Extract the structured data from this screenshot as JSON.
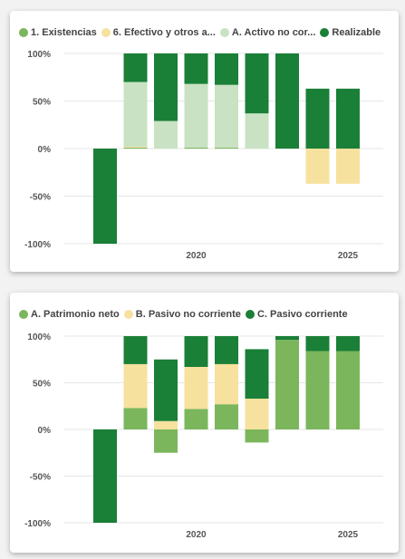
{
  "colors": {
    "realizable": "#1a7f37",
    "activo_no_corriente": "#c9e2c3",
    "efectivo": "#f7e19e",
    "existencias": "#7bb65c",
    "patrimonio_neto": "#7bb65c",
    "pasivo_no_corriente": "#f7e19e",
    "pasivo_corriente": "#1a7f37"
  },
  "chart_data": [
    {
      "type": "bar",
      "stacked": true,
      "legend_position": "top-left",
      "legend": [
        {
          "label": "1. Existencias",
          "color": "#7bb65c"
        },
        {
          "label": "6. Efectivo y otros a...",
          "color": "#f7e19e"
        },
        {
          "label": "A. Activo no cor...",
          "color": "#c9e2c3"
        },
        {
          "label": "Realizable",
          "color": "#1a7f37"
        }
      ],
      "yticks": [
        "100%",
        "50%",
        "0%",
        "-50%",
        "-100%"
      ],
      "xticks": [
        "2020",
        "2025"
      ],
      "ylim": [
        -100,
        100
      ],
      "x": [
        2017,
        2018,
        2019,
        2020,
        2021,
        2022,
        2023,
        2024,
        2025
      ],
      "series": [
        {
          "name": "1. Existencias",
          "color": "#7bb65c",
          "values": [
            0,
            1,
            0,
            1,
            1,
            0,
            0,
            0,
            0
          ]
        },
        {
          "name": "6. Efectivo y otros a...",
          "color": "#f7e19e",
          "values": [
            0,
            1,
            0,
            0,
            0,
            0,
            0,
            -37,
            -37
          ]
        },
        {
          "name": "A. Activo no cor...",
          "color": "#c9e2c3",
          "values": [
            0,
            68,
            29,
            67,
            66,
            37,
            0,
            0,
            0
          ]
        },
        {
          "name": "Realizable",
          "color": "#1a7f37",
          "values": [
            -100,
            30,
            71,
            32,
            33,
            63,
            100,
            63,
            63
          ]
        }
      ]
    },
    {
      "type": "bar",
      "stacked": true,
      "legend_position": "top-left",
      "legend": [
        {
          "label": "A. Patrimonio neto",
          "color": "#7bb65c"
        },
        {
          "label": "B. Pasivo no corriente",
          "color": "#f7e19e"
        },
        {
          "label": "C. Pasivo corriente",
          "color": "#1a7f37"
        }
      ],
      "yticks": [
        "100%",
        "50%",
        "0%",
        "-50%",
        "-100%"
      ],
      "xticks": [
        "2020",
        "2025"
      ],
      "ylim": [
        -100,
        100
      ],
      "x": [
        2017,
        2018,
        2019,
        2020,
        2021,
        2022,
        2023,
        2024,
        2025
      ],
      "series": [
        {
          "name": "A. Patrimonio neto",
          "color": "#7bb65c",
          "values": [
            0,
            23,
            -25,
            22,
            27,
            -14,
            96,
            84,
            84
          ]
        },
        {
          "name": "B. Pasivo no corriente",
          "color": "#f7e19e",
          "values": [
            0,
            47,
            9,
            45,
            43,
            33,
            0,
            0,
            0
          ]
        },
        {
          "name": "C. Pasivo corriente",
          "color": "#1a7f37",
          "values": [
            -100,
            30,
            66,
            33,
            30,
            53,
            4,
            16,
            16
          ]
        }
      ]
    }
  ]
}
